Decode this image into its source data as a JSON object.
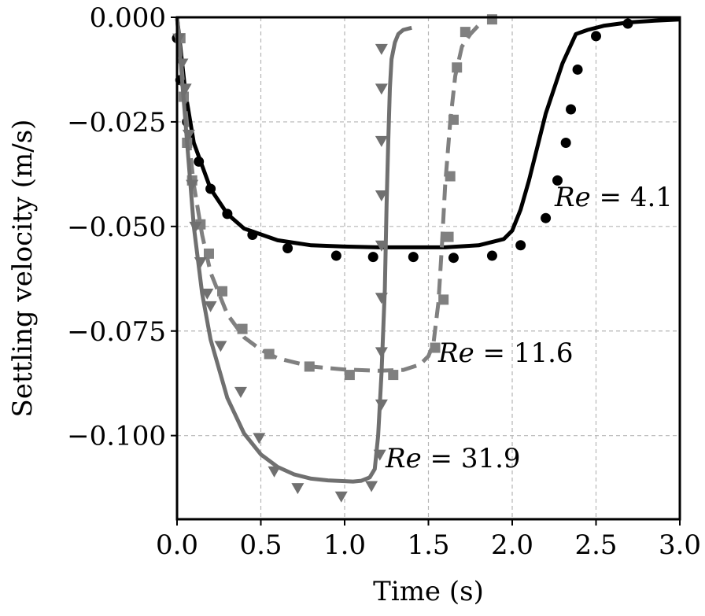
{
  "chart_data": {
    "type": "line",
    "xlabel": "Time (s)",
    "ylabel": "Settling velocity (m/s)",
    "xlim": [
      0.0,
      3.0
    ],
    "ylim": [
      -0.12,
      0.0
    ],
    "xticks": [
      "0.0",
      "0.5",
      "1.0",
      "1.5",
      "2.0",
      "2.5",
      "3.0"
    ],
    "xtick_values": [
      0.0,
      0.5,
      1.0,
      1.5,
      2.0,
      2.5,
      3.0
    ],
    "yticks": [
      "0.000",
      "−0.025",
      "−0.050",
      "−0.075",
      "−0.100"
    ],
    "ytick_values": [
      0.0,
      -0.025,
      -0.05,
      -0.075,
      -0.1
    ],
    "grid": true,
    "series": [
      {
        "label_var": "Re",
        "label_eq": " = 4.1",
        "color": "#000000",
        "line_style": "solid",
        "marker": "circle",
        "line": {
          "x": [
            0.0,
            0.05,
            0.1,
            0.2,
            0.3,
            0.4,
            0.6,
            0.8,
            1.0,
            1.2,
            1.4,
            1.6,
            1.8,
            1.95,
            2.0,
            2.05,
            2.1,
            2.2,
            2.3,
            2.38,
            2.45,
            2.55,
            2.7,
            2.85,
            3.0
          ],
          "y": [
            0.0,
            -0.018,
            -0.03,
            -0.041,
            -0.047,
            -0.0505,
            -0.0533,
            -0.0545,
            -0.0548,
            -0.055,
            -0.055,
            -0.055,
            -0.0545,
            -0.053,
            -0.051,
            -0.046,
            -0.039,
            -0.023,
            -0.011,
            -0.004,
            -0.003,
            -0.002,
            -0.0012,
            -0.0008,
            -0.0005
          ]
        },
        "points": {
          "x": [
            0.0,
            0.02,
            0.06,
            0.13,
            0.2,
            0.3,
            0.45,
            0.66,
            0.95,
            1.17,
            1.41,
            1.65,
            1.88,
            2.05,
            2.2,
            2.27,
            2.32,
            2.35,
            2.39,
            2.5,
            2.69
          ],
          "y": [
            -0.005,
            -0.015,
            -0.025,
            -0.0345,
            -0.041,
            -0.047,
            -0.052,
            -0.0552,
            -0.057,
            -0.0573,
            -0.0573,
            -0.0575,
            -0.057,
            -0.0545,
            -0.048,
            -0.039,
            -0.03,
            -0.022,
            -0.0125,
            -0.0045,
            -0.0015
          ]
        }
      },
      {
        "label_var": "Re",
        "label_eq": " = 11.6",
        "color": "#808080",
        "line_style": "dashed",
        "marker": "square",
        "line": {
          "x": [
            0.0,
            0.05,
            0.1,
            0.15,
            0.2,
            0.3,
            0.4,
            0.5,
            0.6,
            0.8,
            1.0,
            1.2,
            1.35,
            1.45,
            1.5,
            1.53,
            1.56,
            1.58,
            1.6,
            1.63,
            1.66,
            1.7,
            1.75,
            1.82
          ],
          "y": [
            0.0,
            -0.022,
            -0.04,
            -0.052,
            -0.061,
            -0.071,
            -0.0765,
            -0.0795,
            -0.0815,
            -0.0835,
            -0.0842,
            -0.0845,
            -0.0843,
            -0.083,
            -0.081,
            -0.078,
            -0.068,
            -0.055,
            -0.04,
            -0.025,
            -0.014,
            -0.007,
            -0.004,
            -0.001
          ]
        },
        "points": {
          "x": [
            0.02,
            0.04,
            0.06,
            0.09,
            0.14,
            0.19,
            0.27,
            0.39,
            0.55,
            0.79,
            1.03,
            1.29,
            1.54,
            1.59,
            1.62,
            1.63,
            1.65,
            1.67,
            1.72,
            1.88
          ],
          "y": [
            -0.005,
            -0.019,
            -0.03,
            -0.039,
            -0.0495,
            -0.0565,
            -0.0655,
            -0.0745,
            -0.0805,
            -0.0835,
            -0.0855,
            -0.0855,
            -0.079,
            -0.0675,
            -0.0525,
            -0.038,
            -0.0245,
            -0.012,
            -0.0035,
            -0.0005
          ]
        }
      },
      {
        "label_var": "Re",
        "label_eq": " = 31.9",
        "color": "#707070",
        "line_style": "solid",
        "marker": "triangle_down",
        "line": {
          "x": [
            0.0,
            0.05,
            0.1,
            0.15,
            0.2,
            0.3,
            0.4,
            0.5,
            0.6,
            0.7,
            0.8,
            0.9,
            1.0,
            1.05,
            1.1,
            1.15,
            1.18,
            1.2,
            1.22,
            1.24,
            1.25,
            1.26,
            1.27,
            1.28,
            1.3,
            1.32,
            1.35,
            1.4
          ],
          "y": [
            0.0,
            -0.025,
            -0.05,
            -0.066,
            -0.077,
            -0.091,
            -0.0995,
            -0.1045,
            -0.1075,
            -0.1093,
            -0.1103,
            -0.1107,
            -0.1109,
            -0.111,
            -0.1108,
            -0.11,
            -0.108,
            -0.1,
            -0.085,
            -0.065,
            -0.045,
            -0.03,
            -0.017,
            -0.01,
            -0.006,
            -0.004,
            -0.003,
            -0.0025
          ]
        },
        "points": {
          "x": [
            0.01,
            0.03,
            0.05,
            0.07,
            0.09,
            0.11,
            0.14,
            0.18,
            0.2,
            0.26,
            0.38,
            0.49,
            0.58,
            0.72,
            0.98,
            1.16,
            1.21,
            1.22,
            1.22,
            1.22,
            1.22,
            1.22,
            1.22,
            1.22,
            1.22
          ],
          "y": [
            -0.005,
            -0.011,
            -0.017,
            -0.028,
            -0.04,
            -0.05,
            -0.0585,
            -0.066,
            -0.069,
            -0.0785,
            -0.0895,
            -0.1005,
            -0.1085,
            -0.1125,
            -0.1145,
            -0.112,
            -0.1045,
            -0.0925,
            -0.08,
            -0.067,
            -0.0545,
            -0.0425,
            -0.0295,
            -0.017,
            -0.0075
          ]
        }
      }
    ]
  }
}
